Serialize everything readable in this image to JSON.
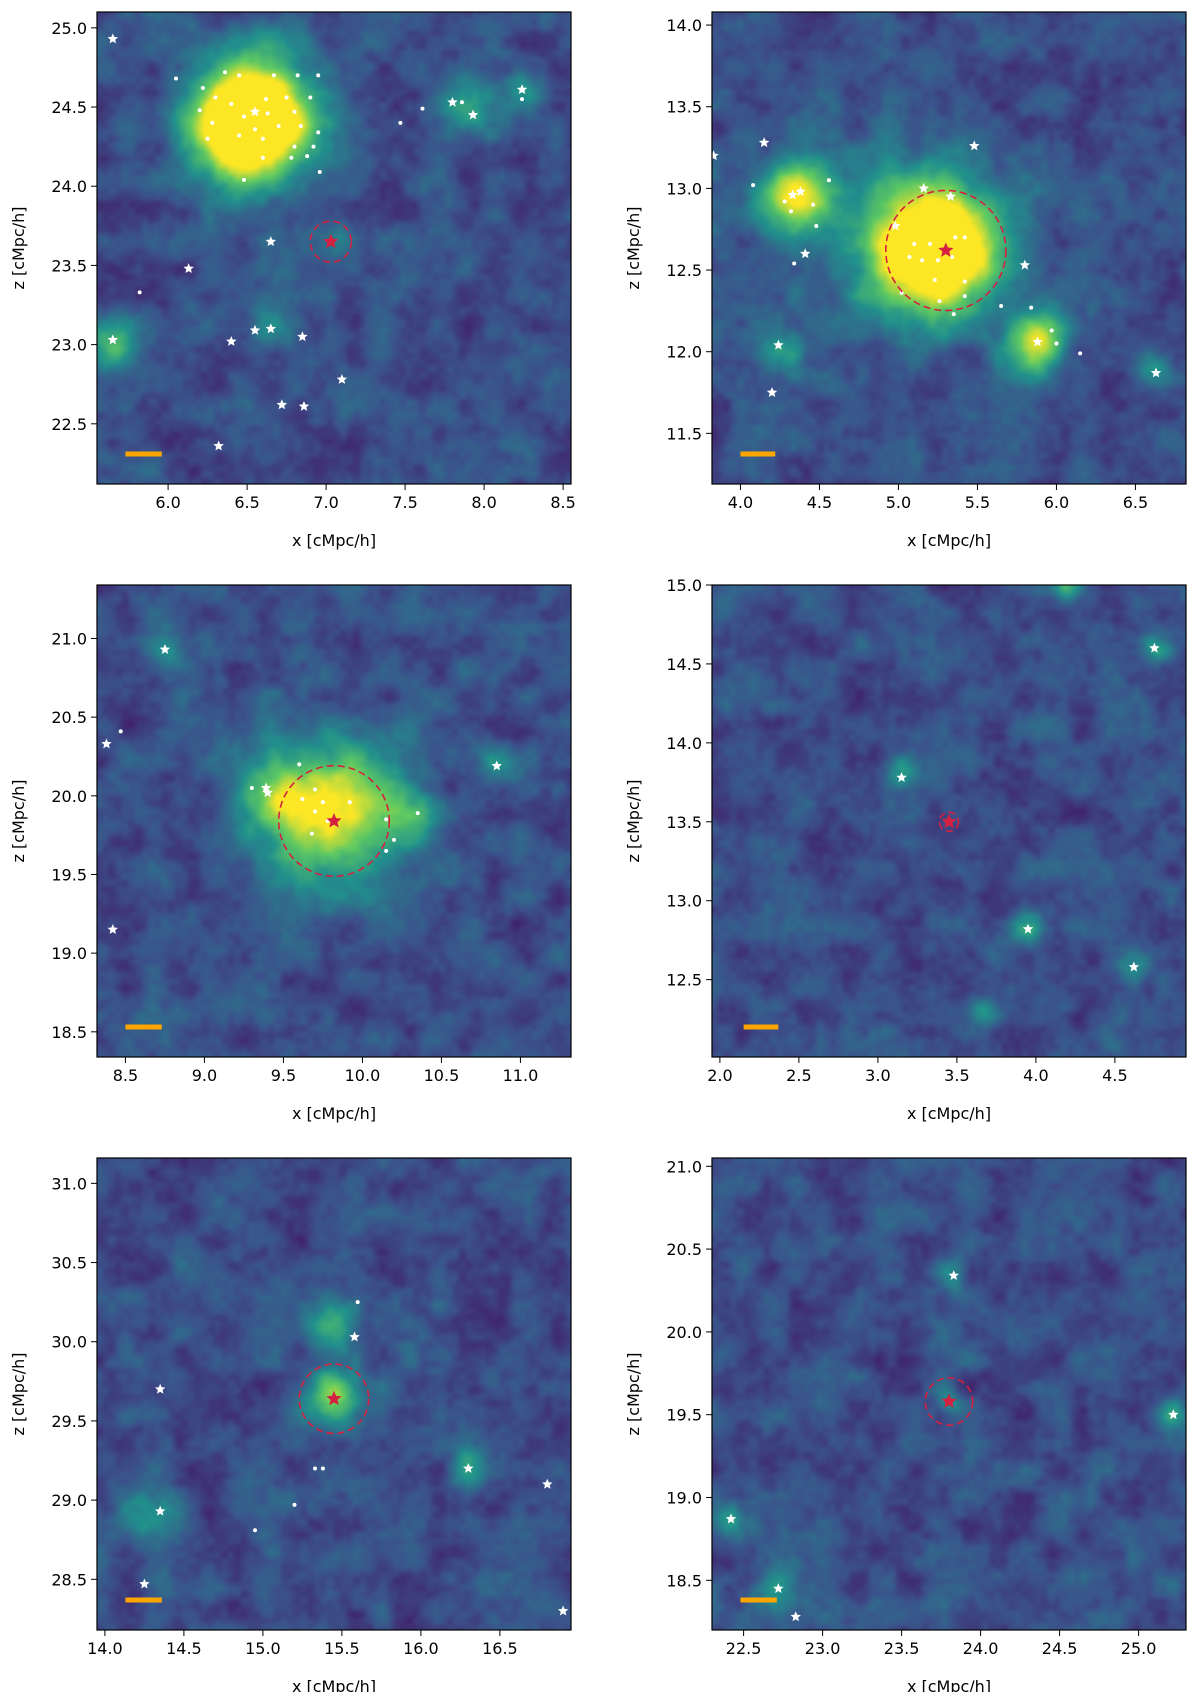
{
  "figure": {
    "colormap": [
      "#440154",
      "#3b528b",
      "#21918c",
      "#5ec962",
      "#fde725"
    ],
    "colors": {
      "center_marker": "#d62040",
      "aperture_circle": "#d62040",
      "satellite_marker": "#ffffff",
      "scale_bar": "#ffa500"
    }
  },
  "chart_data": [
    {
      "type": "heatmap",
      "xlabel": "x [cMpc/h]",
      "ylabel": "z [cMpc/h]",
      "xlim": [
        5.55,
        8.55
      ],
      "ylim": [
        22.12,
        25.1
      ],
      "xticks": [
        "6.0",
        "6.5",
        "7.0",
        "7.5",
        "8.0",
        "8.5"
      ],
      "yticks": [
        "22.5",
        "23.0",
        "23.5",
        "24.0",
        "24.5",
        "25.0"
      ],
      "center": [
        7.03,
        23.65
      ],
      "aperture_radius": 0.13,
      "scale_bar_start_x": 5.73,
      "scale_bar_length": 0.23,
      "density_peaks": [
        [
          6.55,
          24.46,
          0.38,
          1.0
        ],
        [
          6.5,
          24.3,
          0.28,
          0.6
        ],
        [
          7.9,
          24.5,
          0.18,
          0.35
        ],
        [
          5.65,
          23.0,
          0.15,
          0.4
        ],
        [
          6.65,
          23.1,
          0.15,
          0.28
        ],
        [
          7.1,
          23.65,
          0.1,
          0.22
        ],
        [
          8.25,
          24.6,
          0.12,
          0.3
        ]
      ],
      "stars": [
        [
          5.65,
          24.93
        ],
        [
          6.55,
          24.47
        ],
        [
          7.8,
          24.53
        ],
        [
          7.93,
          24.45
        ],
        [
          8.24,
          24.61
        ],
        [
          6.65,
          23.65
        ],
        [
          6.13,
          23.48
        ],
        [
          5.65,
          23.03
        ],
        [
          6.4,
          23.02
        ],
        [
          6.55,
          23.09
        ],
        [
          6.65,
          23.1
        ],
        [
          6.85,
          23.05
        ],
        [
          7.1,
          22.78
        ],
        [
          6.72,
          22.62
        ],
        [
          6.86,
          22.61
        ],
        [
          6.32,
          22.36
        ]
      ],
      "dots": [
        [
          6.05,
          24.68
        ],
        [
          6.22,
          24.62
        ],
        [
          6.36,
          24.72
        ],
        [
          6.45,
          24.7
        ],
        [
          6.67,
          24.7
        ],
        [
          6.82,
          24.7
        ],
        [
          6.95,
          24.7
        ],
        [
          6.3,
          24.56
        ],
        [
          6.4,
          24.52
        ],
        [
          6.62,
          24.55
        ],
        [
          6.75,
          24.56
        ],
        [
          6.9,
          24.56
        ],
        [
          6.2,
          24.48
        ],
        [
          6.48,
          24.44
        ],
        [
          6.63,
          24.46
        ],
        [
          6.8,
          24.47
        ],
        [
          6.28,
          24.4
        ],
        [
          6.55,
          24.36
        ],
        [
          6.7,
          24.38
        ],
        [
          6.84,
          24.38
        ],
        [
          6.95,
          24.34
        ],
        [
          6.45,
          24.32
        ],
        [
          6.6,
          24.3
        ],
        [
          6.25,
          24.3
        ],
        [
          6.8,
          24.25
        ],
        [
          6.92,
          24.25
        ],
        [
          6.6,
          24.18
        ],
        [
          6.78,
          24.18
        ],
        [
          6.88,
          24.19
        ],
        [
          6.96,
          24.09
        ],
        [
          6.48,
          24.04
        ],
        [
          7.47,
          24.4
        ],
        [
          7.61,
          24.49
        ],
        [
          7.86,
          24.53
        ],
        [
          8.24,
          24.55
        ],
        [
          5.82,
          23.33
        ]
      ]
    },
    {
      "type": "heatmap",
      "xlabel": "x [cMpc/h]",
      "ylabel": "z [cMpc/h]",
      "xlim": [
        3.82,
        6.82
      ],
      "ylim": [
        11.19,
        14.08
      ],
      "xticks": [
        "4.0",
        "4.5",
        "5.0",
        "5.5",
        "6.0",
        "6.5"
      ],
      "yticks": [
        "11.5",
        "12.0",
        "12.5",
        "13.0",
        "13.5",
        "14.0"
      ],
      "center": [
        5.3,
        12.62
      ],
      "aperture_radius": 0.38,
      "scale_bar_start_x": 4.0,
      "scale_bar_length": 0.22,
      "density_peaks": [
        [
          5.25,
          12.62,
          0.38,
          1.0
        ],
        [
          4.35,
          12.95,
          0.22,
          0.75
        ],
        [
          5.88,
          12.05,
          0.18,
          0.75
        ],
        [
          5.0,
          12.7,
          0.5,
          0.3
        ],
        [
          4.25,
          12.0,
          0.15,
          0.3
        ],
        [
          6.6,
          11.9,
          0.12,
          0.25
        ]
      ],
      "stars": [
        [
          5.3,
          12.62
        ],
        [
          4.15,
          13.28
        ],
        [
          3.83,
          13.2
        ],
        [
          5.48,
          13.26
        ],
        [
          4.33,
          12.96
        ],
        [
          4.38,
          12.98
        ],
        [
          5.16,
          13.0
        ],
        [
          5.33,
          12.95
        ],
        [
          4.98,
          12.77
        ],
        [
          4.41,
          12.6
        ],
        [
          5.8,
          12.53
        ],
        [
          4.24,
          12.04
        ],
        [
          5.88,
          12.06
        ],
        [
          4.2,
          11.75
        ],
        [
          6.63,
          11.87
        ]
      ],
      "dots": [
        [
          4.08,
          13.02
        ],
        [
          4.56,
          13.05
        ],
        [
          4.28,
          12.92
        ],
        [
          4.46,
          12.9
        ],
        [
          4.32,
          12.86
        ],
        [
          4.48,
          12.77
        ],
        [
          5.1,
          12.66
        ],
        [
          5.2,
          12.66
        ],
        [
          5.36,
          12.7
        ],
        [
          5.42,
          12.7
        ],
        [
          5.07,
          12.58
        ],
        [
          5.15,
          12.56
        ],
        [
          5.25,
          12.56
        ],
        [
          5.34,
          12.58
        ],
        [
          5.23,
          12.44
        ],
        [
          5.42,
          12.43
        ],
        [
          5.26,
          12.31
        ],
        [
          5.35,
          12.23
        ],
        [
          5.42,
          12.34
        ],
        [
          5.02,
          12.36
        ],
        [
          5.65,
          12.28
        ],
        [
          5.84,
          12.27
        ],
        [
          5.97,
          12.13
        ],
        [
          6.0,
          12.05
        ],
        [
          6.15,
          11.99
        ],
        [
          4.34,
          12.54
        ]
      ]
    },
    {
      "type": "heatmap",
      "xlabel": "x [cMpc/h]",
      "ylabel": "z [cMpc/h]",
      "xlim": [
        8.32,
        11.32
      ],
      "ylim": [
        18.34,
        21.34
      ],
      "xticks": [
        "8.5",
        "9.0",
        "9.5",
        "10.0",
        "10.5",
        "11.0"
      ],
      "yticks": [
        "18.5",
        "19.0",
        "19.5",
        "20.0",
        "20.5",
        "21.0"
      ],
      "center": [
        9.82,
        19.84
      ],
      "aperture_radius": 0.35,
      "scale_bar_start_x": 8.5,
      "scale_bar_length": 0.23,
      "density_peaks": [
        [
          9.8,
          19.9,
          0.45,
          0.75
        ],
        [
          9.45,
          20.0,
          0.18,
          0.35
        ],
        [
          10.3,
          19.88,
          0.15,
          0.3
        ],
        [
          8.75,
          20.92,
          0.12,
          0.3
        ],
        [
          10.85,
          20.2,
          0.12,
          0.25
        ]
      ],
      "stars": [
        [
          8.75,
          20.93
        ],
        [
          8.38,
          20.33
        ],
        [
          10.85,
          20.19
        ],
        [
          9.39,
          20.05
        ],
        [
          9.4,
          20.02
        ],
        [
          9.82,
          19.84
        ],
        [
          8.42,
          19.15
        ]
      ],
      "dots": [
        [
          8.47,
          20.41
        ],
        [
          9.6,
          20.2
        ],
        [
          9.3,
          20.05
        ],
        [
          9.7,
          20.04
        ],
        [
          9.62,
          19.98
        ],
        [
          9.7,
          19.9
        ],
        [
          9.75,
          19.96
        ],
        [
          9.92,
          19.96
        ],
        [
          9.78,
          19.84
        ],
        [
          9.68,
          19.76
        ],
        [
          10.15,
          19.85
        ],
        [
          10.35,
          19.89
        ],
        [
          10.2,
          19.72
        ],
        [
          10.15,
          19.65
        ]
      ]
    },
    {
      "type": "heatmap",
      "xlabel": "x [cMpc/h]",
      "ylabel": "z [cMpc/h]",
      "xlim": [
        1.95,
        4.95
      ],
      "ylim": [
        12.01,
        15.0
      ],
      "xticks": [
        "2.0",
        "2.5",
        "3.0",
        "3.5",
        "4.0",
        "4.5"
      ],
      "yticks": [
        "12.5",
        "13.0",
        "13.5",
        "14.0",
        "14.5",
        "15.0"
      ],
      "center": [
        3.45,
        13.5
      ],
      "aperture_radius": 0.06,
      "scale_bar_start_x": 2.15,
      "scale_bar_length": 0.22,
      "density_peaks": [
        [
          3.15,
          13.8,
          0.12,
          0.35
        ],
        [
          3.95,
          12.82,
          0.1,
          0.35
        ],
        [
          4.62,
          12.58,
          0.12,
          0.3
        ],
        [
          4.75,
          14.6,
          0.1,
          0.3
        ],
        [
          3.65,
          12.3,
          0.1,
          0.3
        ],
        [
          4.2,
          15.0,
          0.1,
          0.35
        ]
      ],
      "stars": [
        [
          4.75,
          14.6
        ],
        [
          3.15,
          13.78
        ],
        [
          3.45,
          13.5
        ],
        [
          3.95,
          12.82
        ],
        [
          4.62,
          12.58
        ]
      ],
      "dots": []
    },
    {
      "type": "heatmap",
      "xlabel": "x [cMpc/h]",
      "ylabel": "z [cMpc/h]",
      "xlim": [
        13.95,
        16.95
      ],
      "ylim": [
        28.18,
        31.16
      ],
      "xticks": [
        "14.0",
        "14.5",
        "15.0",
        "15.5",
        "16.0",
        "16.5"
      ],
      "yticks": [
        "28.5",
        "29.0",
        "29.5",
        "30.0",
        "30.5",
        "31.0"
      ],
      "center": [
        15.45,
        29.64
      ],
      "aperture_radius": 0.22,
      "scale_bar_start_x": 14.13,
      "scale_bar_length": 0.23,
      "density_peaks": [
        [
          15.45,
          29.64,
          0.18,
          0.6
        ],
        [
          15.45,
          30.1,
          0.15,
          0.35
        ],
        [
          14.3,
          28.9,
          0.2,
          0.3
        ],
        [
          16.3,
          29.2,
          0.12,
          0.3
        ]
      ],
      "stars": [
        [
          15.58,
          30.03
        ],
        [
          14.35,
          29.7
        ],
        [
          15.45,
          29.64
        ],
        [
          16.3,
          29.2
        ],
        [
          16.8,
          29.1
        ],
        [
          14.35,
          28.93
        ],
        [
          14.25,
          28.47
        ],
        [
          16.9,
          28.3
        ]
      ],
      "dots": [
        [
          15.6,
          30.25
        ],
        [
          15.33,
          29.2
        ],
        [
          15.38,
          29.2
        ],
        [
          15.2,
          28.97
        ],
        [
          14.95,
          28.81
        ]
      ]
    },
    {
      "type": "heatmap",
      "xlabel": "x [cMpc/h]",
      "ylabel": "z [cMpc/h]",
      "xlim": [
        22.3,
        25.3
      ],
      "ylim": [
        18.2,
        21.05
      ],
      "xticks": [
        "22.5",
        "23.0",
        "23.5",
        "24.0",
        "24.5",
        "25.0"
      ],
      "yticks": [
        "18.5",
        "19.0",
        "19.5",
        "20.0",
        "20.5",
        "21.0"
      ],
      "center": [
        23.8,
        19.58
      ],
      "aperture_radius": 0.15,
      "scale_bar_start_x": 22.48,
      "scale_bar_length": 0.23,
      "density_peaks": [
        [
          22.7,
          18.45,
          0.12,
          0.35
        ],
        [
          22.4,
          18.87,
          0.1,
          0.3
        ],
        [
          25.2,
          19.5,
          0.1,
          0.3
        ],
        [
          23.82,
          20.34,
          0.1,
          0.25
        ],
        [
          23.8,
          19.58,
          0.08,
          0.2
        ]
      ],
      "stars": [
        [
          23.83,
          20.34
        ],
        [
          23.8,
          19.58
        ],
        [
          25.22,
          19.5
        ],
        [
          22.42,
          18.87
        ],
        [
          22.72,
          18.45
        ],
        [
          22.83,
          18.28
        ]
      ],
      "dots": []
    }
  ]
}
